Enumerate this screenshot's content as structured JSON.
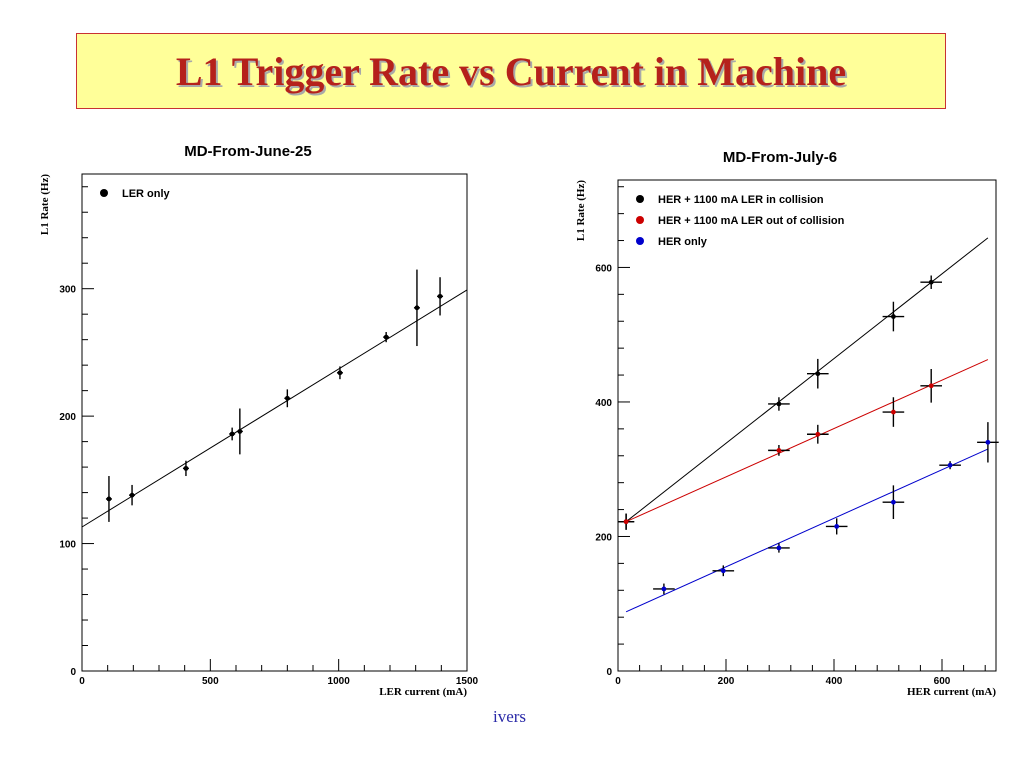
{
  "slide": {
    "title": "L1 Trigger Rate vs Current in Machine",
    "footer_text": "ivers"
  },
  "chart_data": [
    {
      "type": "scatter",
      "title": "MD-From-June-25",
      "xlabel": "LER current (mA)",
      "ylabel": "L1 Rate (Hz)",
      "xlim": [
        0,
        1500
      ],
      "ylim": [
        0,
        390
      ],
      "x_ticks": [
        "0",
        "500",
        "1000",
        "1500"
      ],
      "y_ticks": [
        "0",
        "100",
        "200",
        "300"
      ],
      "x_tick_values": [
        0,
        500,
        1000,
        1500
      ],
      "y_tick_values": [
        0,
        100,
        200,
        300
      ],
      "legend_position": "top-left",
      "series": [
        {
          "name": "LER only",
          "color": "#000000",
          "points": [
            {
              "x": 105,
              "y": 135,
              "xerr": 0,
              "yerr": 18
            },
            {
              "x": 195,
              "y": 138,
              "xerr": 0,
              "yerr": 8
            },
            {
              "x": 405,
              "y": 159,
              "xerr": 0,
              "yerr": 6
            },
            {
              "x": 585,
              "y": 186,
              "xerr": 0,
              "yerr": 5
            },
            {
              "x": 615,
              "y": 188,
              "xerr": 0,
              "yerr": 18
            },
            {
              "x": 800,
              "y": 214,
              "xerr": 0,
              "yerr": 7
            },
            {
              "x": 1005,
              "y": 234,
              "xerr": 0,
              "yerr": 5
            },
            {
              "x": 1185,
              "y": 262,
              "xerr": 0,
              "yerr": 4
            },
            {
              "x": 1305,
              "y": 285,
              "xerr": 0,
              "yerr": 30
            },
            {
              "x": 1395,
              "y": 294,
              "xerr": 0,
              "yerr": 15
            }
          ],
          "fit": {
            "x0": 0,
            "y0": 113,
            "x1": 1500,
            "y1": 299
          }
        }
      ]
    },
    {
      "type": "scatter",
      "title": "MD-From-July-6",
      "xlabel": "HER current (mA)",
      "ylabel": "L1 Rate (Hz)",
      "xlim": [
        0,
        700
      ],
      "ylim": [
        0,
        730
      ],
      "x_ticks": [
        "0",
        "200",
        "400",
        "600"
      ],
      "y_ticks": [
        "0",
        "200",
        "400",
        "600"
      ],
      "x_tick_values": [
        0,
        200,
        400,
        600
      ],
      "y_tick_values": [
        0,
        200,
        400,
        600
      ],
      "legend_position": "top-left",
      "series": [
        {
          "name": "HER + 1100 mA LER in collision",
          "color": "#000000",
          "points": [
            {
              "x": 15,
              "y": 222,
              "xerr": 15,
              "yerr": 12
            },
            {
              "x": 298,
              "y": 397,
              "xerr": 20,
              "yerr": 10
            },
            {
              "x": 370,
              "y": 442,
              "xerr": 20,
              "yerr": 22
            },
            {
              "x": 510,
              "y": 527,
              "xerr": 20,
              "yerr": 22
            },
            {
              "x": 580,
              "y": 578,
              "xerr": 20,
              "yerr": 10
            }
          ],
          "fit": {
            "x0": 15,
            "y0": 222,
            "x1": 685,
            "y1": 644
          }
        },
        {
          "name": "HER + 1100 mA LER out of collision",
          "color": "#cc0000",
          "points": [
            {
              "x": 15,
              "y": 222,
              "xerr": 15,
              "yerr": 12
            },
            {
              "x": 298,
              "y": 328,
              "xerr": 20,
              "yerr": 8
            },
            {
              "x": 370,
              "y": 352,
              "xerr": 20,
              "yerr": 14
            },
            {
              "x": 510,
              "y": 385,
              "xerr": 20,
              "yerr": 22
            },
            {
              "x": 580,
              "y": 424,
              "xerr": 20,
              "yerr": 25
            }
          ],
          "fit": {
            "x0": 15,
            "y0": 222,
            "x1": 685,
            "y1": 463
          }
        },
        {
          "name": "HER only",
          "color": "#0000cc",
          "points": [
            {
              "x": 85,
              "y": 122,
              "xerr": 20,
              "yerr": 8
            },
            {
              "x": 195,
              "y": 149,
              "xerr": 20,
              "yerr": 8
            },
            {
              "x": 298,
              "y": 183,
              "xerr": 20,
              "yerr": 7
            },
            {
              "x": 405,
              "y": 215,
              "xerr": 20,
              "yerr": 12
            },
            {
              "x": 510,
              "y": 251,
              "xerr": 20,
              "yerr": 25
            },
            {
              "x": 615,
              "y": 306,
              "xerr": 20,
              "yerr": 6
            },
            {
              "x": 685,
              "y": 340,
              "xerr": 20,
              "yerr": 30
            }
          ],
          "fit": {
            "x0": 15,
            "y0": 88,
            "x1": 685,
            "y1": 330
          }
        }
      ]
    }
  ]
}
